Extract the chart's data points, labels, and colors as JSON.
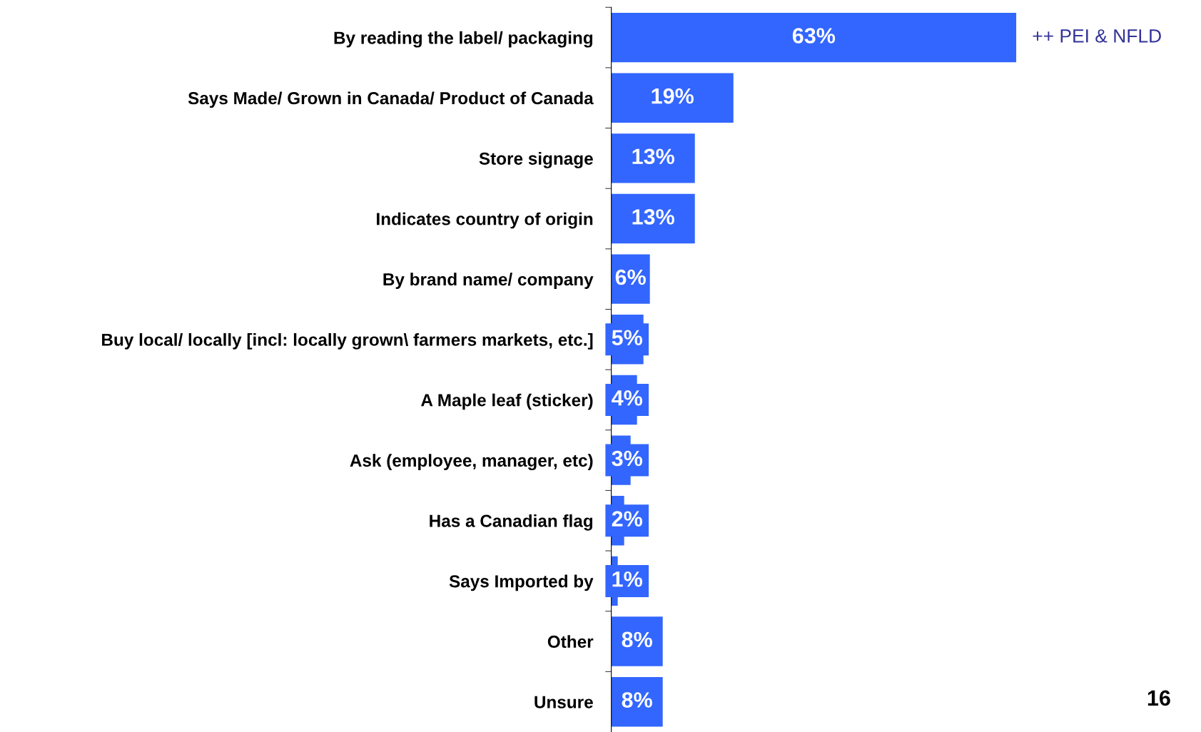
{
  "chart_data": {
    "type": "bar",
    "orientation": "horizontal",
    "categories": [
      "By reading the label/ packaging",
      "Says Made/ Grown in Canada/ Product of Canada",
      "Store signage",
      "Indicates country of origin",
      "By brand name/ company",
      "Buy local/ locally [incl: locally grown\\ farmers markets, etc.]",
      "A Maple leaf (sticker)",
      "Ask (employee, manager, etc)",
      "Has a Canadian flag",
      "Says Imported by",
      "Other",
      "Unsure"
    ],
    "values": [
      63,
      19,
      13,
      13,
      6,
      5,
      4,
      3,
      2,
      1,
      8,
      8
    ],
    "value_labels": [
      "63%",
      "19%",
      "13%",
      "13%",
      "6%",
      "5%",
      "4%",
      "3%",
      "2%",
      "1%",
      "8%",
      "8%"
    ],
    "color": "#3366ff",
    "tick_labels": "y",
    "grid": false,
    "legend": false,
    "annotations": [
      {
        "text": "++ PEI & NFLD",
        "x": 63,
        "y": "By reading the label/ packaging"
      },
      "16"
    ]
  }
}
